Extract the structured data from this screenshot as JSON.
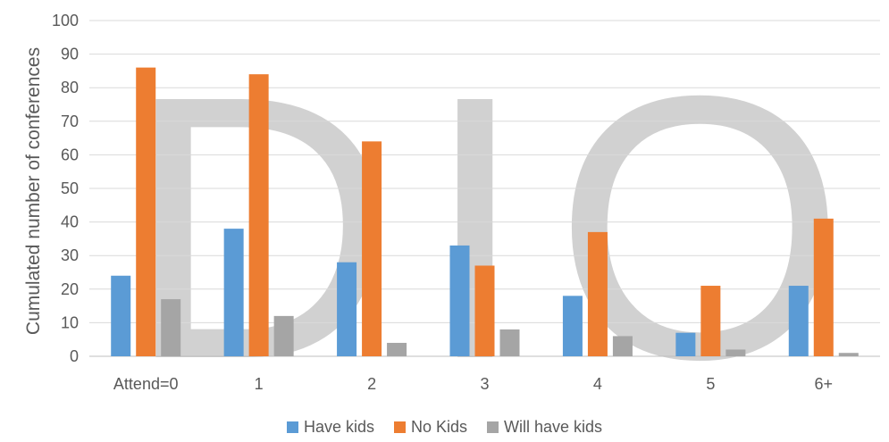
{
  "chart_data": {
    "type": "bar",
    "title": "",
    "xlabel": "",
    "ylabel": "Cumulated number of conferences",
    "ylim": [
      0,
      100
    ],
    "yticks": [
      0,
      10,
      20,
      30,
      40,
      50,
      60,
      70,
      80,
      90,
      100
    ],
    "categories": [
      "Attend=0",
      "1",
      "2",
      "3",
      "4",
      "5",
      "6+"
    ],
    "series": [
      {
        "name": "Have kids",
        "color": "#5B9BD5",
        "values": [
          24,
          38,
          28,
          33,
          18,
          7,
          21
        ]
      },
      {
        "name": "No Kids",
        "color": "#ED7D31",
        "values": [
          86,
          84,
          64,
          27,
          37,
          21,
          41
        ]
      },
      {
        "name": "Will have kids",
        "color": "#A5A5A5",
        "values": [
          17,
          12,
          4,
          8,
          6,
          2,
          1
        ]
      }
    ],
    "grid": true,
    "legend_position": "bottom",
    "watermark": "DION"
  }
}
